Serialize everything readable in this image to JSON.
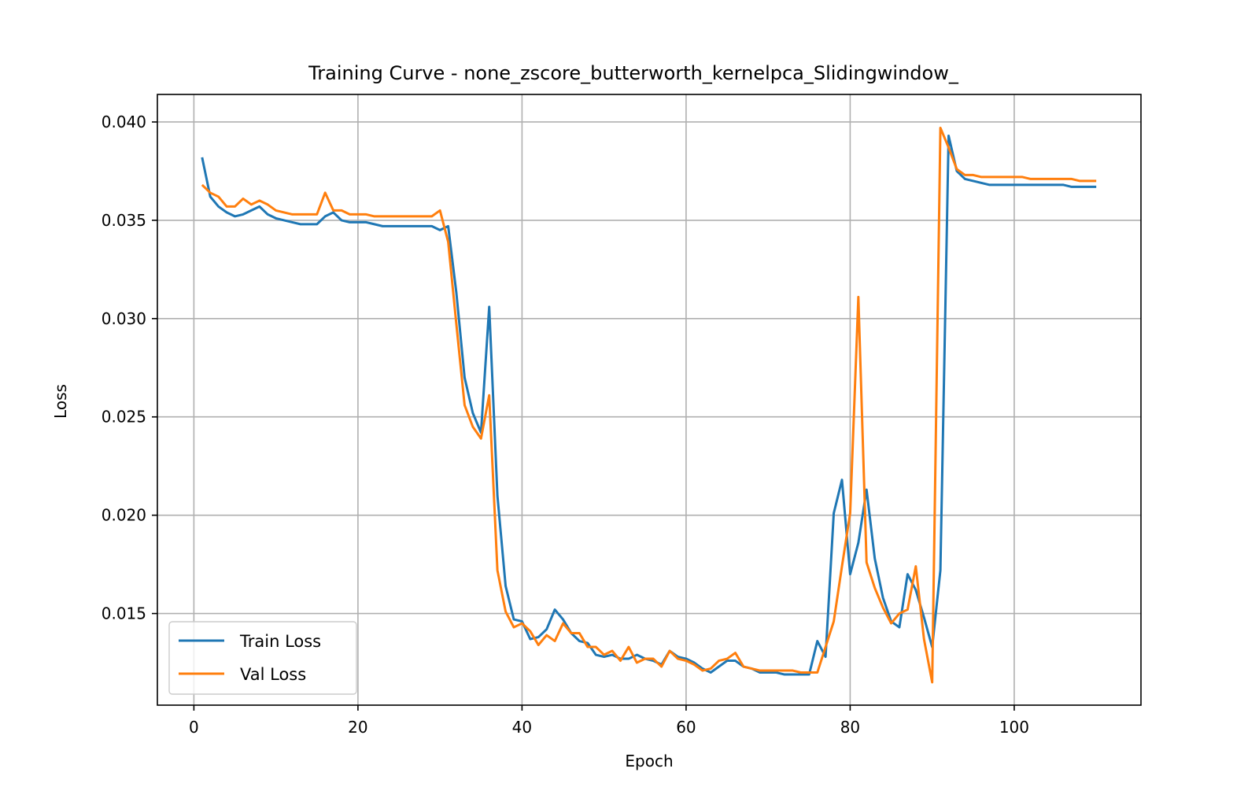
{
  "chart_data": {
    "type": "line",
    "title": "Training Curve - none_zscore_butterworth_kernelpca_Slidingwindow_",
    "xlabel": "Epoch",
    "ylabel": "Loss",
    "xlim": [
      -4.45,
      115.45
    ],
    "ylim": [
      0.01034,
      0.0414
    ],
    "xticks": [
      0,
      20,
      40,
      60,
      80,
      100
    ],
    "xtick_labels": [
      "0",
      "20",
      "40",
      "60",
      "80",
      "100"
    ],
    "yticks": [
      0.015,
      0.02,
      0.025,
      0.03,
      0.035,
      0.04
    ],
    "ytick_labels": [
      "0.015",
      "0.020",
      "0.025",
      "0.030",
      "0.035",
      "0.040"
    ],
    "grid": true,
    "legend_position": "lower-left",
    "series": [
      {
        "name": "Train Loss",
        "color": "#1f77b4",
        "x": [
          1,
          2,
          3,
          4,
          5,
          6,
          7,
          8,
          9,
          10,
          11,
          12,
          13,
          14,
          15,
          16,
          17,
          18,
          19,
          20,
          21,
          22,
          23,
          24,
          25,
          26,
          27,
          28,
          29,
          30,
          31,
          32,
          33,
          34,
          35,
          36,
          37,
          38,
          39,
          40,
          41,
          42,
          43,
          44,
          45,
          46,
          47,
          48,
          49,
          50,
          51,
          52,
          53,
          54,
          55,
          56,
          57,
          58,
          59,
          60,
          61,
          62,
          63,
          64,
          65,
          66,
          67,
          68,
          69,
          70,
          71,
          72,
          73,
          74,
          75,
          76,
          77,
          78,
          79,
          80,
          81,
          82,
          83,
          84,
          85,
          86,
          87,
          88,
          89,
          90,
          91,
          92,
          93,
          94,
          95,
          96,
          97,
          98,
          99,
          100,
          101,
          102,
          103,
          104,
          105,
          106,
          107,
          108,
          109,
          110
        ],
        "y": [
          0.0382,
          0.0362,
          0.0357,
          0.0354,
          0.0352,
          0.0353,
          0.0355,
          0.0357,
          0.0353,
          0.0351,
          0.035,
          0.0349,
          0.0348,
          0.0348,
          0.0348,
          0.0352,
          0.0354,
          0.035,
          0.0349,
          0.0349,
          0.0349,
          0.0348,
          0.0347,
          0.0347,
          0.0347,
          0.0347,
          0.0347,
          0.0347,
          0.0347,
          0.0345,
          0.0347,
          0.0313,
          0.027,
          0.0252,
          0.0242,
          0.0306,
          0.021,
          0.0164,
          0.0147,
          0.0146,
          0.0137,
          0.0138,
          0.0142,
          0.0152,
          0.0147,
          0.014,
          0.0136,
          0.0135,
          0.0129,
          0.0128,
          0.0129,
          0.0127,
          0.0127,
          0.0129,
          0.0127,
          0.0126,
          0.0124,
          0.0131,
          0.0128,
          0.0127,
          0.0125,
          0.0122,
          0.012,
          0.0123,
          0.0126,
          0.0126,
          0.0123,
          0.0122,
          0.012,
          0.012,
          0.012,
          0.0119,
          0.0119,
          0.0119,
          0.0119,
          0.0136,
          0.0128,
          0.0201,
          0.0218,
          0.017,
          0.0186,
          0.0213,
          0.0178,
          0.0158,
          0.0146,
          0.0143,
          0.017,
          0.0162,
          0.0148,
          0.0133,
          0.0172,
          0.0393,
          0.0375,
          0.0371,
          0.037,
          0.0369,
          0.0368,
          0.0368,
          0.0368,
          0.0368,
          0.0368,
          0.0368,
          0.0368,
          0.0368,
          0.0368,
          0.0368,
          0.0367,
          0.0367,
          0.0367,
          0.0367
        ]
      },
      {
        "name": "Val Loss",
        "color": "#ff7f0e",
        "x": [
          1,
          2,
          3,
          4,
          5,
          6,
          7,
          8,
          9,
          10,
          11,
          12,
          13,
          14,
          15,
          16,
          17,
          18,
          19,
          20,
          21,
          22,
          23,
          24,
          25,
          26,
          27,
          28,
          29,
          30,
          31,
          32,
          33,
          34,
          35,
          36,
          37,
          38,
          39,
          40,
          41,
          42,
          43,
          44,
          45,
          46,
          47,
          48,
          49,
          50,
          51,
          52,
          53,
          54,
          55,
          56,
          57,
          58,
          59,
          60,
          61,
          62,
          63,
          64,
          65,
          66,
          67,
          68,
          69,
          70,
          71,
          72,
          73,
          74,
          75,
          76,
          77,
          78,
          79,
          80,
          81,
          82,
          83,
          84,
          85,
          86,
          87,
          88,
          89,
          90,
          91,
          92,
          93,
          94,
          95,
          96,
          97,
          98,
          99,
          100,
          101,
          102,
          103,
          104,
          105,
          106,
          107,
          108,
          109,
          110
        ],
        "y": [
          0.0368,
          0.0364,
          0.0362,
          0.0357,
          0.0357,
          0.0361,
          0.0358,
          0.036,
          0.0358,
          0.0355,
          0.0354,
          0.0353,
          0.0353,
          0.0353,
          0.0353,
          0.0364,
          0.0355,
          0.0355,
          0.0353,
          0.0353,
          0.0353,
          0.0352,
          0.0352,
          0.0352,
          0.0352,
          0.0352,
          0.0352,
          0.0352,
          0.0352,
          0.0355,
          0.0339,
          0.0297,
          0.0256,
          0.0245,
          0.0239,
          0.0261,
          0.0172,
          0.0151,
          0.0143,
          0.0145,
          0.0141,
          0.0134,
          0.0139,
          0.0136,
          0.0145,
          0.014,
          0.014,
          0.0133,
          0.0133,
          0.0129,
          0.0131,
          0.0126,
          0.0133,
          0.0125,
          0.0127,
          0.0127,
          0.0123,
          0.0131,
          0.0127,
          0.0126,
          0.0124,
          0.0121,
          0.0122,
          0.0126,
          0.0127,
          0.013,
          0.0123,
          0.0122,
          0.0121,
          0.0121,
          0.0121,
          0.0121,
          0.0121,
          0.012,
          0.012,
          0.012,
          0.0133,
          0.0146,
          0.0174,
          0.0201,
          0.0311,
          0.0176,
          0.0163,
          0.0153,
          0.0145,
          0.015,
          0.0152,
          0.0174,
          0.0137,
          0.0115,
          0.0397,
          0.0387,
          0.0376,
          0.0373,
          0.0373,
          0.0372,
          0.0372,
          0.0372,
          0.0372,
          0.0372,
          0.0372,
          0.0371,
          0.0371,
          0.0371,
          0.0371,
          0.0371,
          0.0371,
          0.037,
          0.037,
          0.037
        ]
      }
    ]
  }
}
